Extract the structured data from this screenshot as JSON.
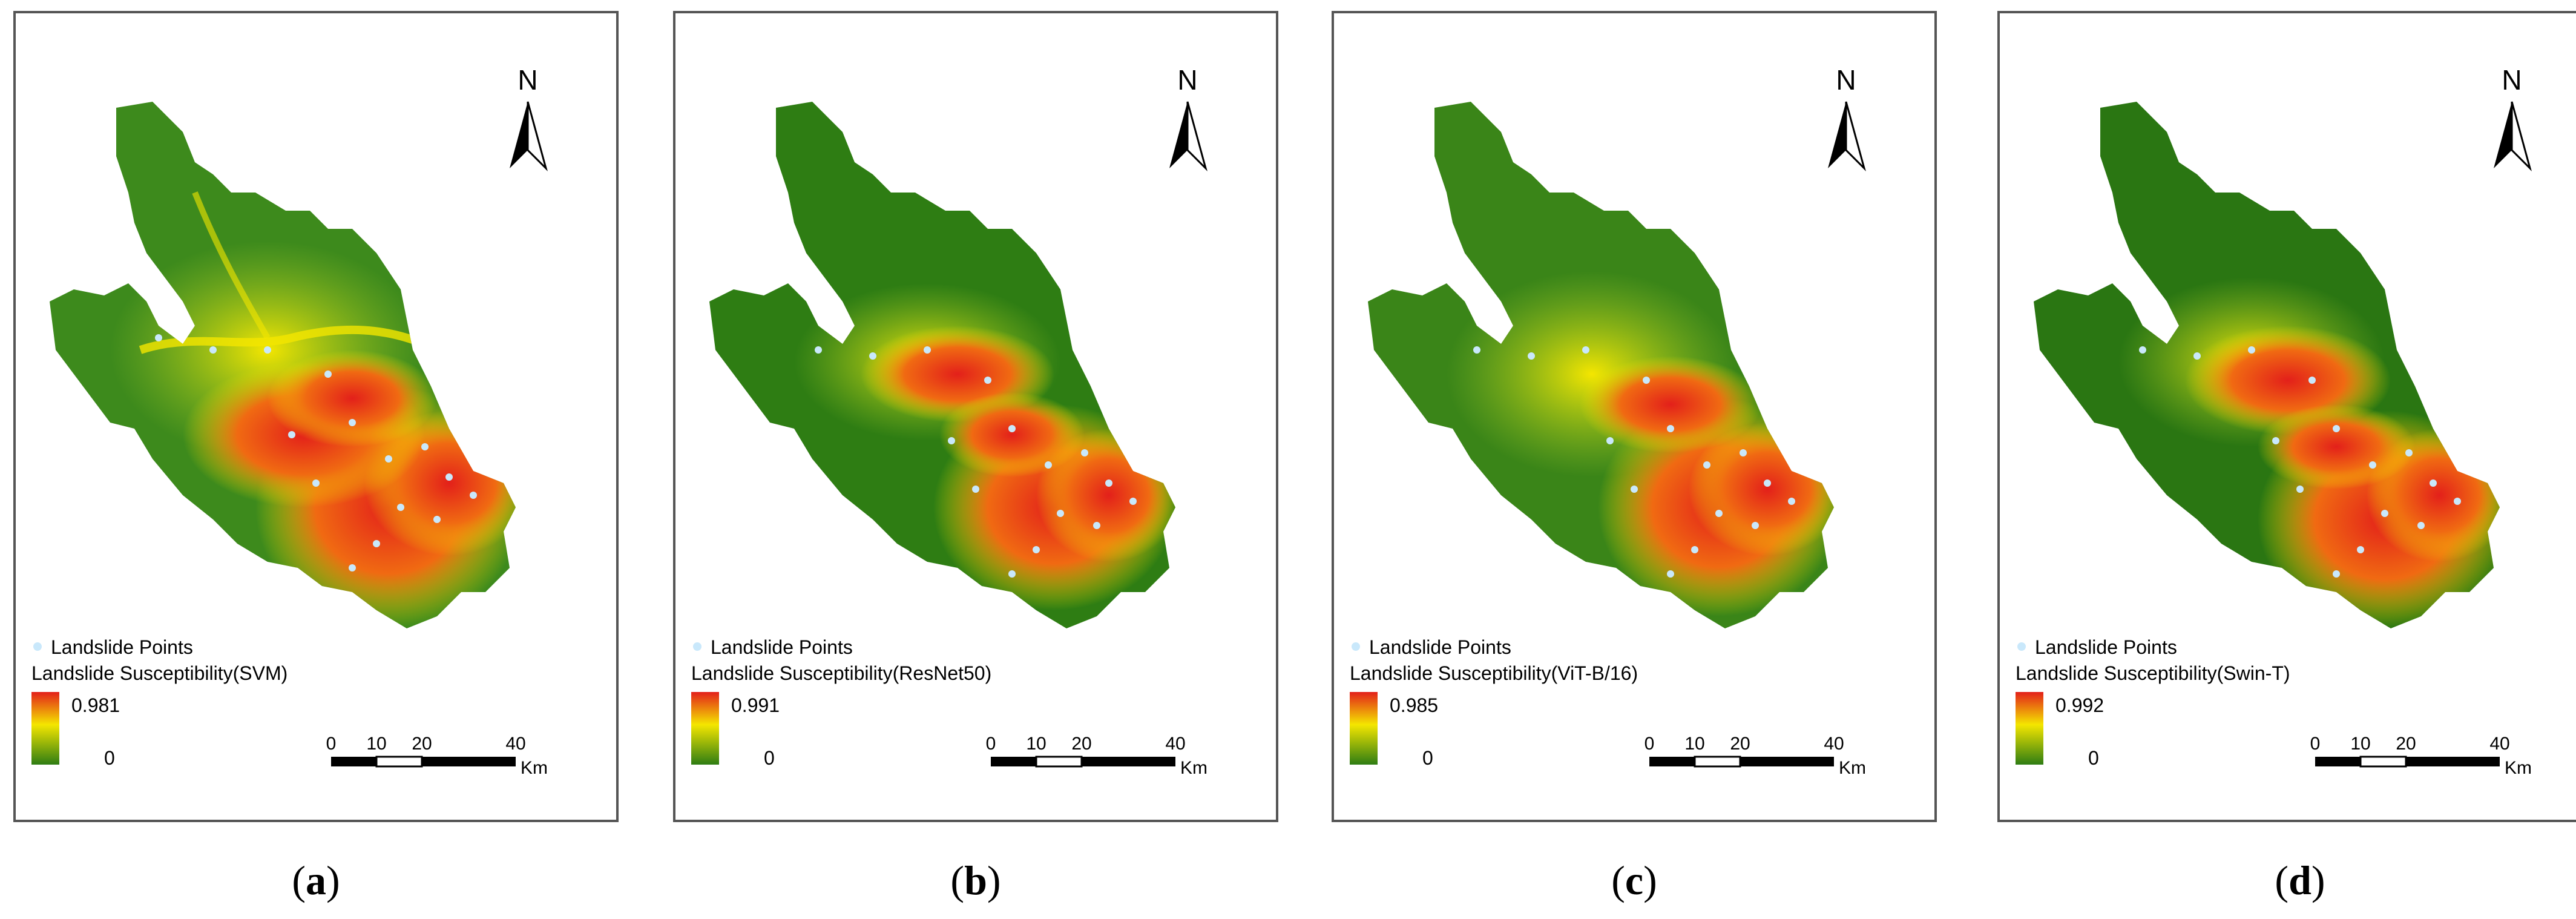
{
  "colors": {
    "ramp_high": "#e3201a",
    "ramp_mid": "#f4e600",
    "ramp_low": "#2e7d13",
    "landslide_point": "#c9e8fb",
    "frame": "#555555"
  },
  "panels": [
    {
      "north_label": "N",
      "legend_points_label": "Landslide Points",
      "legend_title": "Landslide Susceptibility(SVM)",
      "legend_max": "0.981",
      "legend_min": "0",
      "scale_ticks": [
        "0",
        "10",
        "20",
        "40"
      ],
      "scale_unit": "Km",
      "caption_open": "(",
      "caption_letter": "a",
      "caption_close": ")"
    },
    {
      "north_label": "N",
      "legend_points_label": "Landslide Points",
      "legend_title": "Landslide Susceptibility(ResNet50)",
      "legend_max": "0.991",
      "legend_min": "0",
      "scale_ticks": [
        "0",
        "10",
        "20",
        "40"
      ],
      "scale_unit": "Km",
      "caption_open": "(",
      "caption_letter": "b",
      "caption_close": ")"
    },
    {
      "north_label": "N",
      "legend_points_label": "Landslide Points",
      "legend_title": "Landslide Susceptibility(ViT-B/16)",
      "legend_max": "0.985",
      "legend_min": "0",
      "scale_ticks": [
        "0",
        "10",
        "20",
        "40"
      ],
      "scale_unit": "Km",
      "caption_open": "(",
      "caption_letter": "c",
      "caption_close": ")"
    },
    {
      "north_label": "N",
      "legend_points_label": "Landslide Points",
      "legend_title": "Landslide Susceptibility(Swin-T)",
      "legend_max": "0.992",
      "legend_min": "0",
      "scale_ticks": [
        "0",
        "10",
        "20",
        "40"
      ],
      "scale_unit": "Km",
      "caption_open": "(",
      "caption_letter": "d",
      "caption_close": ")"
    }
  ]
}
